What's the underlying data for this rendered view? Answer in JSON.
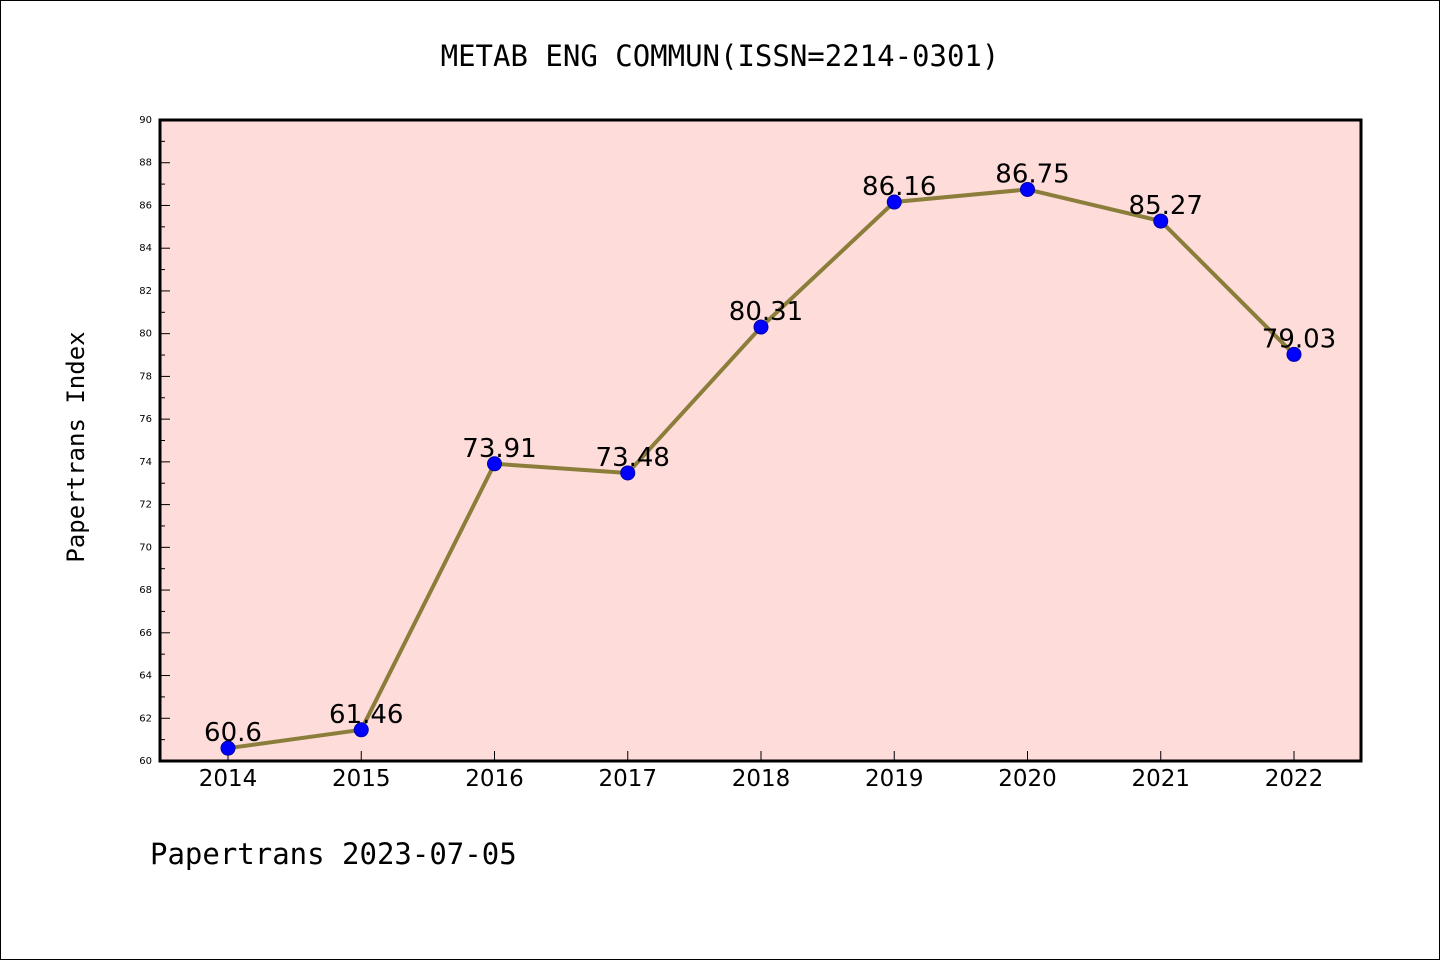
{
  "chart_data": {
    "type": "line",
    "title": "METAB ENG COMMUN(ISSN=2214-0301)",
    "ylabel": "Papertrans Index",
    "xlabel": "",
    "footer": "Papertrans 2023-07-05",
    "categories": [
      "2014",
      "2015",
      "2016",
      "2017",
      "2018",
      "2019",
      "2020",
      "2021",
      "2022"
    ],
    "series": [
      {
        "values": [
          60.6,
          61.46,
          73.91,
          73.48,
          80.31,
          86.16,
          86.75,
          85.27,
          79.03
        ],
        "labels": [
          "60.6",
          "61.46",
          "73.91",
          "73.48",
          "80.31",
          "86.16",
          "86.75",
          "85.27",
          "79.03"
        ],
        "line_color": "#8b7d3a",
        "marker_color": "#0000ff"
      }
    ],
    "ylim": [
      60,
      90
    ],
    "yticks": [
      "60",
      "62",
      "64",
      "66",
      "68",
      "70",
      "72",
      "74",
      "76",
      "78",
      "80",
      "82",
      "84",
      "86",
      "88",
      "90"
    ],
    "plot_background": "#fddcda",
    "grid": false,
    "legend": "none"
  }
}
